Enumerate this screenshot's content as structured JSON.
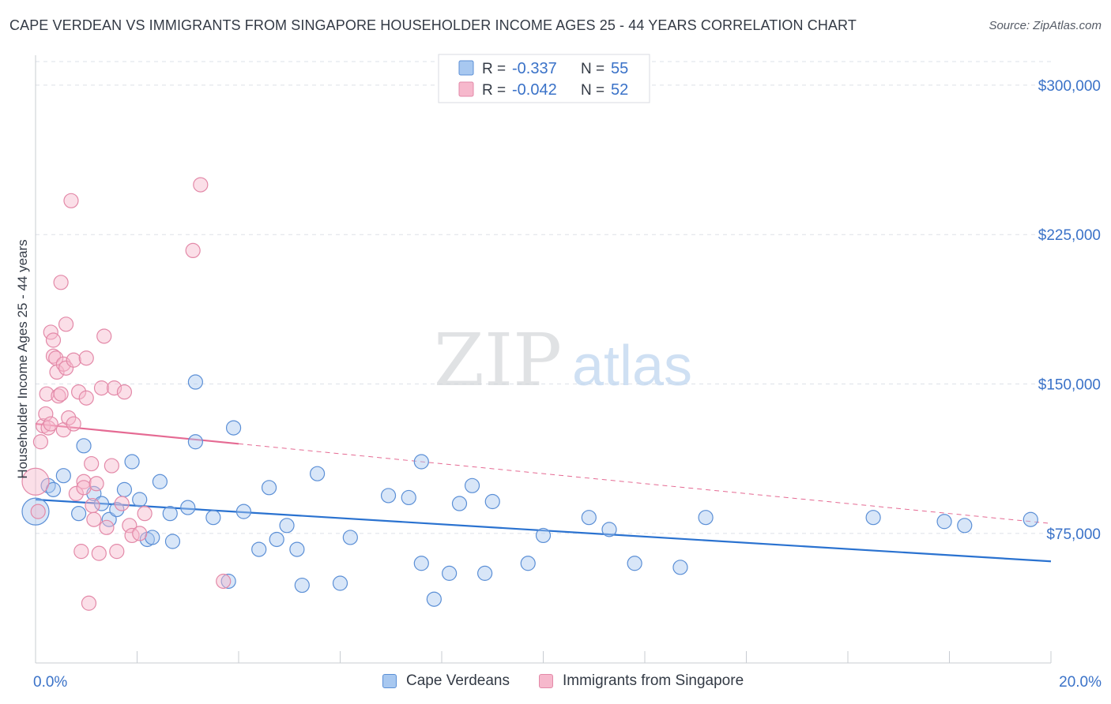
{
  "title": "CAPE VERDEAN VS IMMIGRANTS FROM SINGAPORE HOUSEHOLDER INCOME AGES 25 - 44 YEARS CORRELATION CHART",
  "source": "Source: ZipAtlas.com",
  "watermark": {
    "zip": "ZIP",
    "atlas": "atlas"
  },
  "colors": {
    "blue_fill": "#a8c8f0",
    "blue_stroke": "#5b8fd6",
    "blue_line": "#2a72d0",
    "pink_fill": "#f6b8cc",
    "pink_stroke": "#e389a8",
    "pink_line": "#e56a93",
    "value_text": "#3a72c8",
    "grid": "#dde1e8",
    "axis": "#c8ccd2"
  },
  "stats_legend": {
    "rows": [
      {
        "r_label": "R =",
        "r_value": "-0.337",
        "n_label": "N =",
        "n_value": "55"
      },
      {
        "r_label": "R =",
        "r_value": "-0.042",
        "n_label": "N =",
        "n_value": "52"
      }
    ]
  },
  "chart_data": {
    "type": "scatter",
    "title": "CAPE VERDEAN VS IMMIGRANTS FROM SINGAPORE HOUSEHOLDER INCOME AGES 25 - 44 YEARS CORRELATION CHART",
    "xlabel": "",
    "ylabel": "Householder Income Ages 25 - 44 years",
    "xlim": [
      0,
      20
    ],
    "ylim": [
      10000,
      315000
    ],
    "x_tick_labels": [
      {
        "value": 0,
        "label": "0.0%"
      },
      {
        "value": 20,
        "label": "20.0%"
      }
    ],
    "y_ticks": [
      {
        "value": 75000,
        "label": "$75,000"
      },
      {
        "value": 150000,
        "label": "$150,000"
      },
      {
        "value": 225000,
        "label": "$225,000"
      },
      {
        "value": 300000,
        "label": "$300,000"
      }
    ],
    "grid": true,
    "legend_position": "bottom",
    "series": [
      {
        "name": "Cape Verdeans",
        "r": -0.337,
        "n": 55,
        "trend": {
          "x": [
            0,
            20
          ],
          "y": [
            92000,
            61000
          ],
          "solid_to": 20
        },
        "points": [
          [
            0.0,
            86000
          ],
          [
            0.25,
            99000
          ],
          [
            0.35,
            97000
          ],
          [
            0.55,
            104000
          ],
          [
            0.85,
            85000
          ],
          [
            0.95,
            119000
          ],
          [
            1.15,
            95000
          ],
          [
            1.3,
            90000
          ],
          [
            1.45,
            82000
          ],
          [
            1.6,
            87000
          ],
          [
            1.75,
            97000
          ],
          [
            1.9,
            111000
          ],
          [
            2.05,
            92000
          ],
          [
            2.2,
            72000
          ],
          [
            2.3,
            73000
          ],
          [
            2.45,
            101000
          ],
          [
            2.65,
            85000
          ],
          [
            2.7,
            71000
          ],
          [
            3.0,
            88000
          ],
          [
            3.15,
            151000
          ],
          [
            3.15,
            121000
          ],
          [
            3.5,
            83000
          ],
          [
            3.8,
            51000
          ],
          [
            3.9,
            128000
          ],
          [
            4.1,
            86000
          ],
          [
            4.4,
            67000
          ],
          [
            4.6,
            98000
          ],
          [
            4.75,
            72000
          ],
          [
            4.95,
            79000
          ],
          [
            5.15,
            67000
          ],
          [
            5.25,
            49000
          ],
          [
            5.55,
            105000
          ],
          [
            6.0,
            50000
          ],
          [
            6.2,
            73000
          ],
          [
            6.95,
            94000
          ],
          [
            7.35,
            93000
          ],
          [
            7.6,
            60000
          ],
          [
            7.6,
            111000
          ],
          [
            7.85,
            42000
          ],
          [
            8.15,
            55000
          ],
          [
            8.35,
            90000
          ],
          [
            8.6,
            99000
          ],
          [
            8.85,
            55000
          ],
          [
            9.0,
            91000
          ],
          [
            9.7,
            60000
          ],
          [
            10.0,
            74000
          ],
          [
            10.9,
            83000
          ],
          [
            11.3,
            77000
          ],
          [
            11.8,
            60000
          ],
          [
            12.7,
            58000
          ],
          [
            13.2,
            83000
          ],
          [
            16.5,
            83000
          ],
          [
            17.9,
            81000
          ],
          [
            18.3,
            79000
          ],
          [
            19.6,
            82000
          ]
        ]
      },
      {
        "name": "Immigrants from Singapore",
        "r": -0.042,
        "n": 52,
        "trend": {
          "x": [
            0,
            20
          ],
          "y": [
            130000,
            80000
          ],
          "solid_to": 4.0
        },
        "points": [
          [
            0.0,
            101000
          ],
          [
            0.05,
            86000
          ],
          [
            0.1,
            121000
          ],
          [
            0.15,
            129000
          ],
          [
            0.2,
            135000
          ],
          [
            0.22,
            145000
          ],
          [
            0.25,
            128000
          ],
          [
            0.3,
            130000
          ],
          [
            0.3,
            176000
          ],
          [
            0.35,
            164000
          ],
          [
            0.35,
            172000
          ],
          [
            0.4,
            163000
          ],
          [
            0.42,
            156000
          ],
          [
            0.45,
            144000
          ],
          [
            0.5,
            145000
          ],
          [
            0.5,
            201000
          ],
          [
            0.55,
            160000
          ],
          [
            0.55,
            127000
          ],
          [
            0.6,
            180000
          ],
          [
            0.6,
            158000
          ],
          [
            0.65,
            133000
          ],
          [
            0.7,
            242000
          ],
          [
            0.75,
            162000
          ],
          [
            0.75,
            130000
          ],
          [
            0.8,
            95000
          ],
          [
            0.85,
            146000
          ],
          [
            0.9,
            66000
          ],
          [
            0.95,
            101000
          ],
          [
            0.95,
            98000
          ],
          [
            1.0,
            163000
          ],
          [
            1.0,
            143000
          ],
          [
            1.05,
            40000
          ],
          [
            1.1,
            110000
          ],
          [
            1.12,
            89000
          ],
          [
            1.15,
            82000
          ],
          [
            1.2,
            100000
          ],
          [
            1.25,
            65000
          ],
          [
            1.3,
            148000
          ],
          [
            1.35,
            174000
          ],
          [
            1.4,
            78000
          ],
          [
            1.5,
            109000
          ],
          [
            1.55,
            148000
          ],
          [
            1.6,
            66000
          ],
          [
            1.7,
            90000
          ],
          [
            1.75,
            146000
          ],
          [
            1.85,
            79000
          ],
          [
            1.9,
            74000
          ],
          [
            2.05,
            75000
          ],
          [
            2.15,
            85000
          ],
          [
            3.1,
            217000
          ],
          [
            3.25,
            250000
          ],
          [
            3.7,
            51000
          ]
        ]
      }
    ]
  }
}
